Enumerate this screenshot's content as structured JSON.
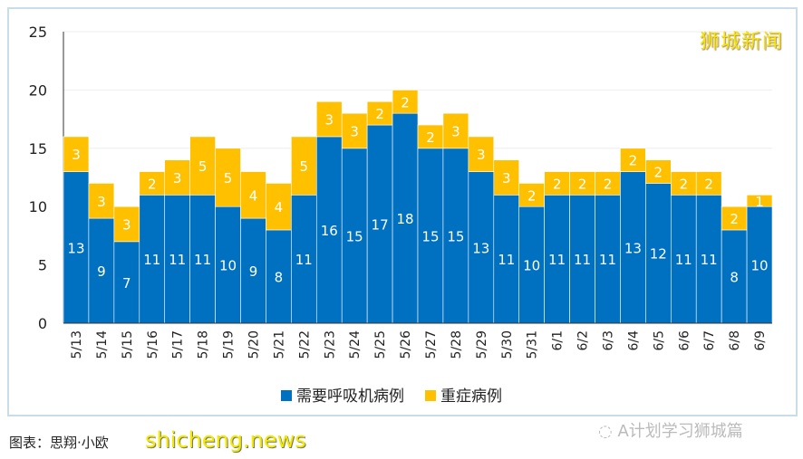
{
  "chart_data": {
    "type": "bar",
    "stacked": true,
    "categories": [
      "5/13",
      "5/14",
      "5/15",
      "5/16",
      "5/17",
      "5/18",
      "5/19",
      "5/20",
      "5/21",
      "5/22",
      "5/23",
      "5/24",
      "5/25",
      "5/26",
      "5/27",
      "5/28",
      "5/29",
      "5/30",
      "5/31",
      "6/1",
      "6/2",
      "6/3",
      "6/4",
      "6/5",
      "6/6",
      "6/7",
      "6/8",
      "6/9"
    ],
    "series": [
      {
        "name": "需要呼吸机病例",
        "color": "#0070c0",
        "values": [
          13,
          9,
          7,
          11,
          11,
          11,
          10,
          9,
          8,
          11,
          16,
          15,
          17,
          18,
          15,
          15,
          13,
          11,
          10,
          11,
          11,
          11,
          13,
          12,
          11,
          11,
          8,
          10
        ]
      },
      {
        "name": "重症病例",
        "color": "#ffc000",
        "values": [
          3,
          3,
          3,
          2,
          3,
          5,
          5,
          4,
          4,
          5,
          3,
          3,
          2,
          2,
          2,
          3,
          3,
          3,
          2,
          2,
          2,
          2,
          2,
          2,
          2,
          2,
          2,
          1
        ]
      }
    ],
    "ylim": [
      0,
      25
    ],
    "yticks": [
      0,
      5,
      10,
      15,
      20,
      25
    ],
    "grid": true,
    "legend": "bottom"
  },
  "brand": "狮城新闻",
  "caption": "图表：思翔·小欧",
  "site_watermark": "shicheng.news",
  "wechat_watermark": "A计划学习狮城篇"
}
